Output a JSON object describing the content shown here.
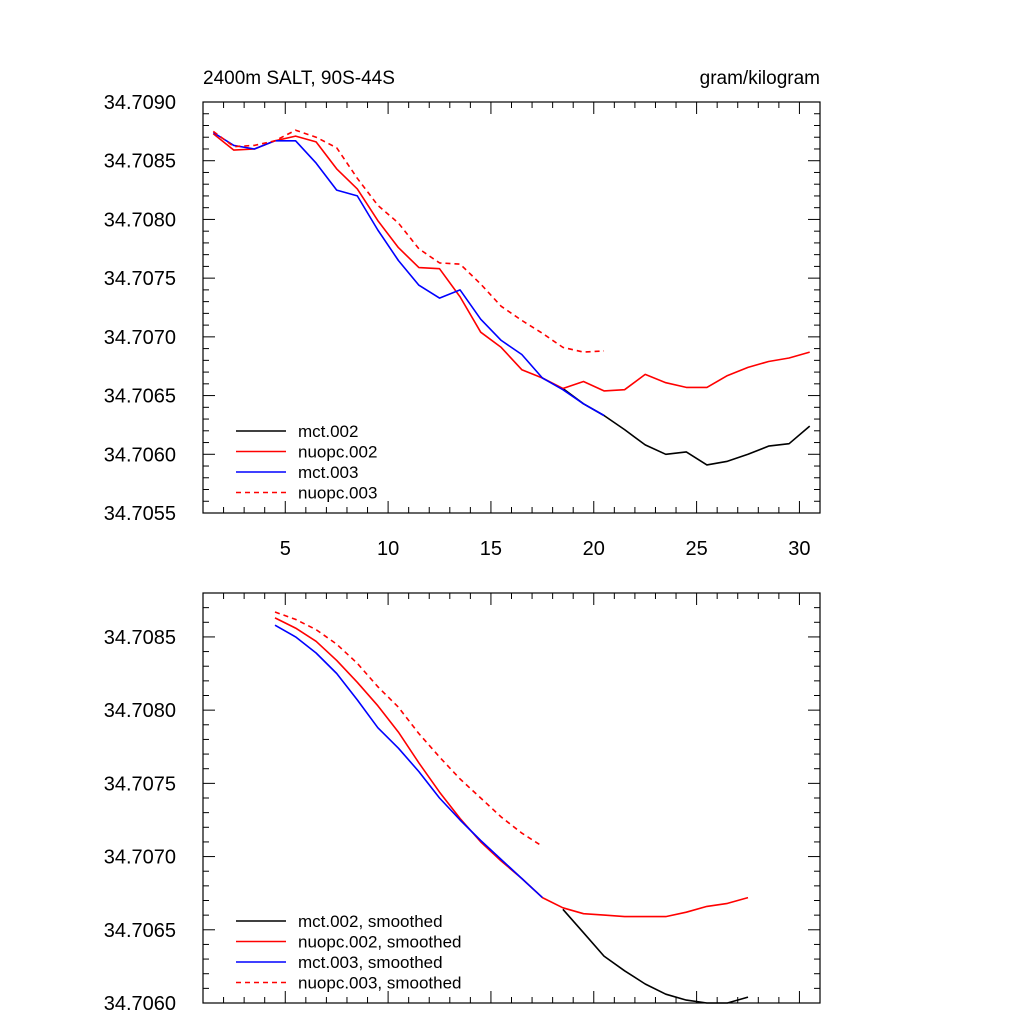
{
  "chart_data": [
    {
      "type": "line",
      "title_left": "2400m SALT, 90S-44S",
      "title_right": "gram/kilogram",
      "xlim": [
        1,
        31
      ],
      "ylim": [
        34.7055,
        34.709
      ],
      "x_ticks": [
        5,
        10,
        15,
        20,
        25,
        30
      ],
      "x_tick_labels": [
        "5",
        "10",
        "15",
        "20",
        "25",
        "30"
      ],
      "y_ticks": [
        34.7055,
        34.706,
        34.7065,
        34.707,
        34.7075,
        34.708,
        34.7085,
        34.709
      ],
      "y_tick_labels": [
        "34.7055",
        "34.7060",
        "34.7065",
        "34.7070",
        "34.7075",
        "34.7080",
        "34.7085",
        "34.7090"
      ],
      "legend_position": "bottom-left",
      "series": [
        {
          "name": "mct.002",
          "color": "#000000",
          "dash": "solid",
          "x": [
            18.5,
            19.5,
            20.5,
            21.5,
            22.5,
            23.5,
            24.5,
            25.5,
            26.5,
            27.5,
            28.5,
            29.5,
            30.5
          ],
          "values": [
            34.70656,
            34.70643,
            34.70633,
            34.70621,
            34.70608,
            34.706,
            34.70602,
            34.70591,
            34.70594,
            34.706,
            34.70607,
            34.70609,
            34.70624
          ]
        },
        {
          "name": "nuopc.002",
          "color": "#ff0000",
          "dash": "solid",
          "x": [
            1.5,
            2.5,
            3.5,
            4.5,
            5.5,
            6.5,
            7.5,
            8.5,
            9.5,
            10.5,
            11.5,
            12.5,
            13.5,
            14.5,
            15.5,
            16.5,
            17.5,
            18.5,
            19.5,
            20.5,
            21.5,
            22.5,
            23.5,
            24.5,
            25.5,
            26.5,
            27.5,
            28.5,
            29.5,
            30.5
          ],
          "values": [
            34.70873,
            34.70859,
            34.7086,
            34.70867,
            34.70871,
            34.70866,
            34.70843,
            34.70826,
            34.70799,
            34.70776,
            34.70759,
            34.70758,
            34.70734,
            34.70704,
            34.70691,
            34.70672,
            34.70665,
            34.70656,
            34.70662,
            34.70654,
            34.70655,
            34.70668,
            34.70661,
            34.70657,
            34.70657,
            34.70667,
            34.70674,
            34.70679,
            34.70682,
            34.70687
          ]
        },
        {
          "name": "mct.003",
          "color": "#0000ff",
          "dash": "solid",
          "x": [
            1.5,
            2.5,
            3.5,
            4.5,
            5.5,
            6.5,
            7.5,
            8.5,
            9.5,
            10.5,
            11.5,
            12.5,
            13.5,
            14.5,
            15.5,
            16.5,
            17.5,
            18.5,
            19.5,
            20.5
          ],
          "values": [
            34.70874,
            34.70863,
            34.7086,
            34.70867,
            34.70867,
            34.70848,
            34.70825,
            34.7082,
            34.70791,
            34.70765,
            34.70744,
            34.70733,
            34.7074,
            34.70715,
            34.70697,
            34.70685,
            34.70665,
            34.70655,
            34.70643,
            34.70633
          ]
        },
        {
          "name": "nuopc.003",
          "color": "#ff0000",
          "dash": "dashed",
          "x": [
            1.5,
            2.5,
            3.5,
            4.5,
            5.5,
            6.5,
            7.5,
            8.5,
            9.5,
            10.5,
            11.5,
            12.5,
            13.5,
            14.5,
            15.5,
            16.5,
            17.5,
            18.5,
            19.5,
            20.5
          ],
          "values": [
            34.70875,
            34.70862,
            34.70863,
            34.70867,
            34.70876,
            34.7087,
            34.70861,
            34.70835,
            34.70812,
            34.70797,
            34.70775,
            34.70763,
            34.70762,
            34.70745,
            34.70726,
            34.70714,
            34.70703,
            34.70691,
            34.70687,
            34.70688
          ]
        }
      ]
    },
    {
      "type": "line",
      "xlim": [
        1,
        31
      ],
      "ylim": [
        34.706,
        34.7088
      ],
      "x_ticks": [
        5,
        10,
        15,
        20,
        25,
        30
      ],
      "y_ticks": [
        34.706,
        34.7065,
        34.707,
        34.7075,
        34.708,
        34.7085
      ],
      "y_tick_labels": [
        "34.7060",
        "34.7065",
        "34.7070",
        "34.7075",
        "34.7080",
        "34.7085"
      ],
      "legend_position": "bottom-left",
      "series": [
        {
          "name": "mct.002, smoothed",
          "color": "#000000",
          "dash": "solid",
          "x": [
            18.5,
            19.5,
            20.5,
            21.5,
            22.5,
            23.5,
            24.5,
            25.5,
            26.5,
            27.5
          ],
          "values": [
            34.70664,
            34.70648,
            34.70632,
            34.70622,
            34.70613,
            34.70606,
            34.70602,
            34.706,
            34.706,
            34.70604
          ]
        },
        {
          "name": "nuopc.002, smoothed",
          "color": "#ff0000",
          "dash": "solid",
          "x": [
            4.5,
            5.5,
            6.5,
            7.5,
            8.5,
            9.5,
            10.5,
            11.5,
            12.5,
            13.5,
            14.5,
            15.5,
            16.5,
            17.5,
            18.5,
            19.5,
            20.5,
            21.5,
            22.5,
            23.5,
            24.5,
            25.5,
            26.5,
            27.5
          ],
          "values": [
            34.70863,
            34.70856,
            34.70847,
            34.70834,
            34.70819,
            34.70803,
            34.70785,
            34.70764,
            34.70744,
            34.70726,
            34.7071,
            34.70697,
            34.70685,
            34.70672,
            34.70665,
            34.70661,
            34.7066,
            34.70659,
            34.70659,
            34.70659,
            34.70662,
            34.70666,
            34.70668,
            34.70672
          ]
        },
        {
          "name": "mct.003, smoothed",
          "color": "#0000ff",
          "dash": "solid",
          "x": [
            4.5,
            5.5,
            6.5,
            7.5,
            8.5,
            9.5,
            10.5,
            11.5,
            12.5,
            13.5,
            14.5,
            15.5,
            16.5,
            17.5
          ],
          "values": [
            34.70858,
            34.7085,
            34.70839,
            34.70825,
            34.70807,
            34.70788,
            34.70774,
            34.70758,
            34.7074,
            34.70725,
            34.70711,
            34.70698,
            34.70685,
            34.70672
          ]
        },
        {
          "name": "nuopc.003, smoothed",
          "color": "#ff0000",
          "dash": "dashed",
          "x": [
            4.5,
            5.5,
            6.5,
            7.5,
            8.5,
            9.5,
            10.5,
            11.5,
            12.5,
            13.5,
            14.5,
            15.5,
            16.5,
            17.5
          ],
          "values": [
            34.70867,
            34.70862,
            34.70855,
            34.70845,
            34.70832,
            34.70816,
            34.70802,
            34.70784,
            34.70768,
            34.70753,
            34.7074,
            34.70727,
            34.70716,
            34.70707
          ]
        }
      ]
    }
  ]
}
